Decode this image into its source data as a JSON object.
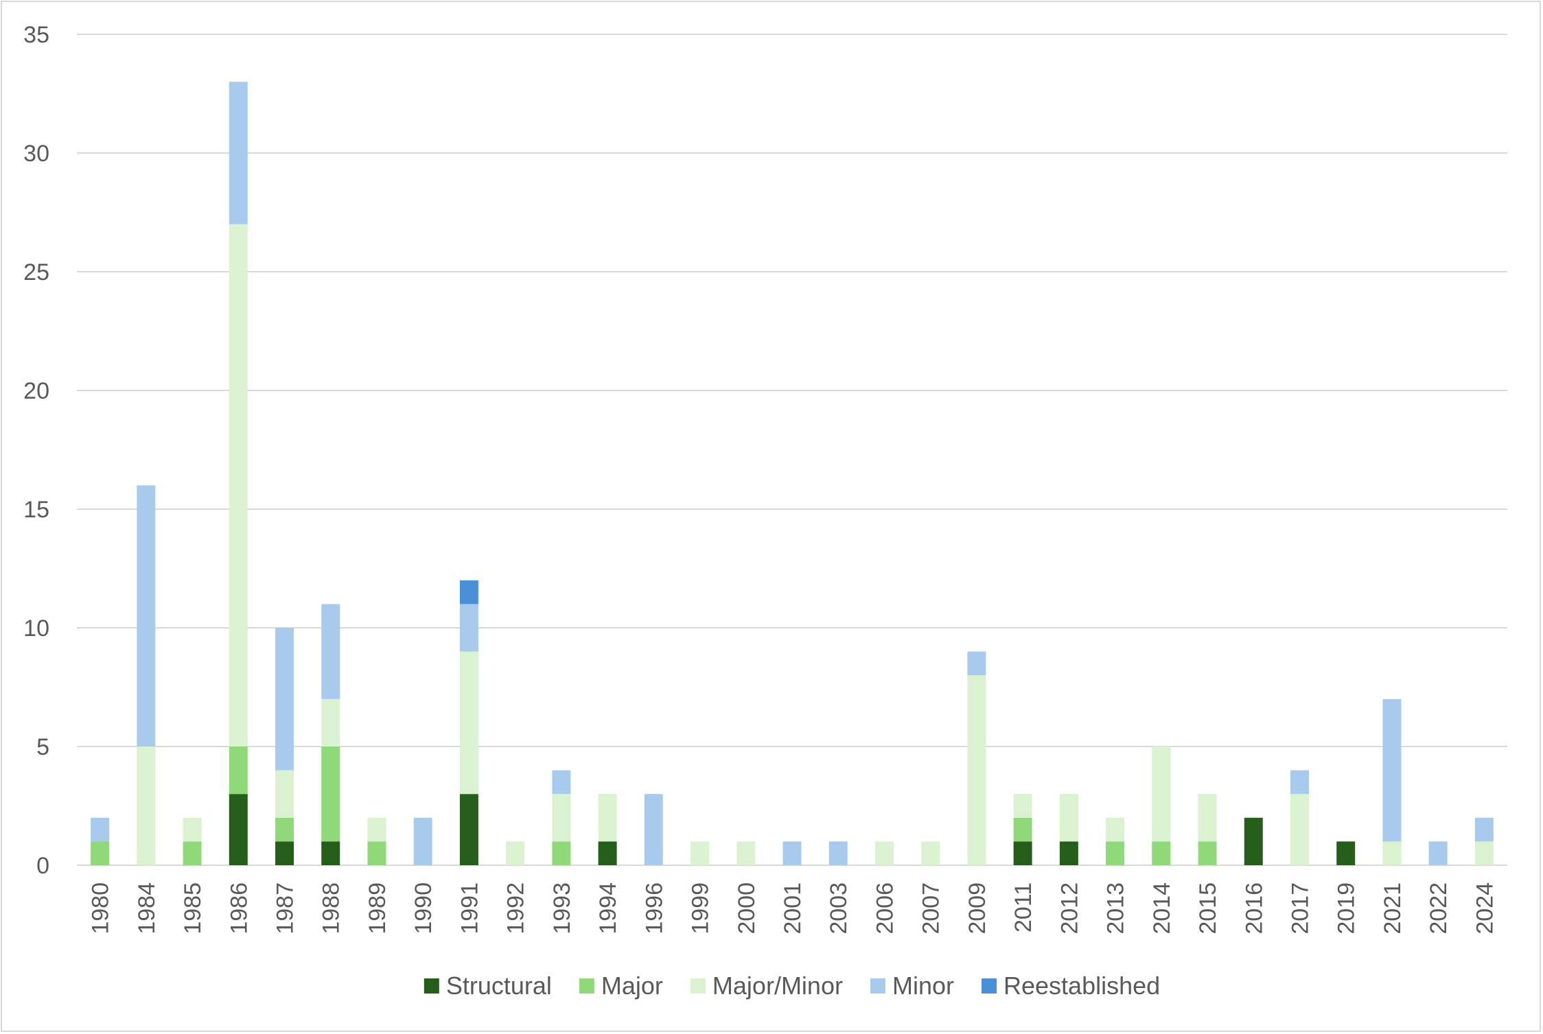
{
  "chart_data": {
    "type": "bar",
    "stacked": true,
    "title": "",
    "xlabel": "",
    "ylabel": "",
    "ylim": [
      0,
      35
    ],
    "yticks": [
      0,
      5,
      10,
      15,
      20,
      25,
      30,
      35
    ],
    "grid": true,
    "legend_position": "bottom",
    "categories": [
      "1980",
      "1984",
      "1985",
      "1986",
      "1987",
      "1988",
      "1989",
      "1990",
      "1991",
      "1992",
      "1993",
      "1994",
      "1996",
      "1999",
      "2000",
      "2001",
      "2003",
      "2006",
      "2007",
      "2009",
      "2011",
      "2012",
      "2013",
      "2014",
      "2015",
      "2016",
      "2017",
      "2019",
      "2021",
      "2022",
      "2024"
    ],
    "series": [
      {
        "name": "Structural",
        "color": "#255e1a",
        "values": [
          0,
          0,
          0,
          3,
          1,
          1,
          0,
          0,
          3,
          0,
          0,
          1,
          0,
          0,
          0,
          0,
          0,
          0,
          0,
          0,
          1,
          1,
          0,
          0,
          0,
          2,
          0,
          1,
          0,
          0,
          0
        ]
      },
      {
        "name": "Major",
        "color": "#8fd97a",
        "values": [
          1,
          0,
          1,
          2,
          1,
          4,
          1,
          0,
          0,
          0,
          1,
          0,
          0,
          0,
          0,
          0,
          0,
          0,
          0,
          0,
          1,
          0,
          1,
          1,
          1,
          0,
          0,
          0,
          0,
          0,
          0
        ]
      },
      {
        "name": "Major/Minor",
        "color": "#daf2d0",
        "values": [
          0,
          5,
          1,
          22,
          2,
          2,
          1,
          0,
          6,
          1,
          2,
          2,
          0,
          1,
          1,
          0,
          0,
          1,
          1,
          8,
          1,
          2,
          1,
          4,
          2,
          0,
          3,
          0,
          1,
          0,
          1
        ]
      },
      {
        "name": "Minor",
        "color": "#a8cbed",
        "values": [
          1,
          11,
          0,
          6,
          6,
          4,
          0,
          2,
          2,
          0,
          1,
          0,
          3,
          0,
          0,
          1,
          1,
          0,
          0,
          1,
          0,
          0,
          0,
          0,
          0,
          0,
          1,
          0,
          6,
          1,
          1
        ]
      },
      {
        "name": "Reestablished",
        "color": "#4a90d9",
        "values": [
          0,
          0,
          0,
          0,
          0,
          0,
          0,
          0,
          1,
          0,
          0,
          0,
          0,
          0,
          0,
          0,
          0,
          0,
          0,
          0,
          0,
          0,
          0,
          0,
          0,
          0,
          0,
          0,
          0,
          0,
          0
        ]
      }
    ]
  }
}
